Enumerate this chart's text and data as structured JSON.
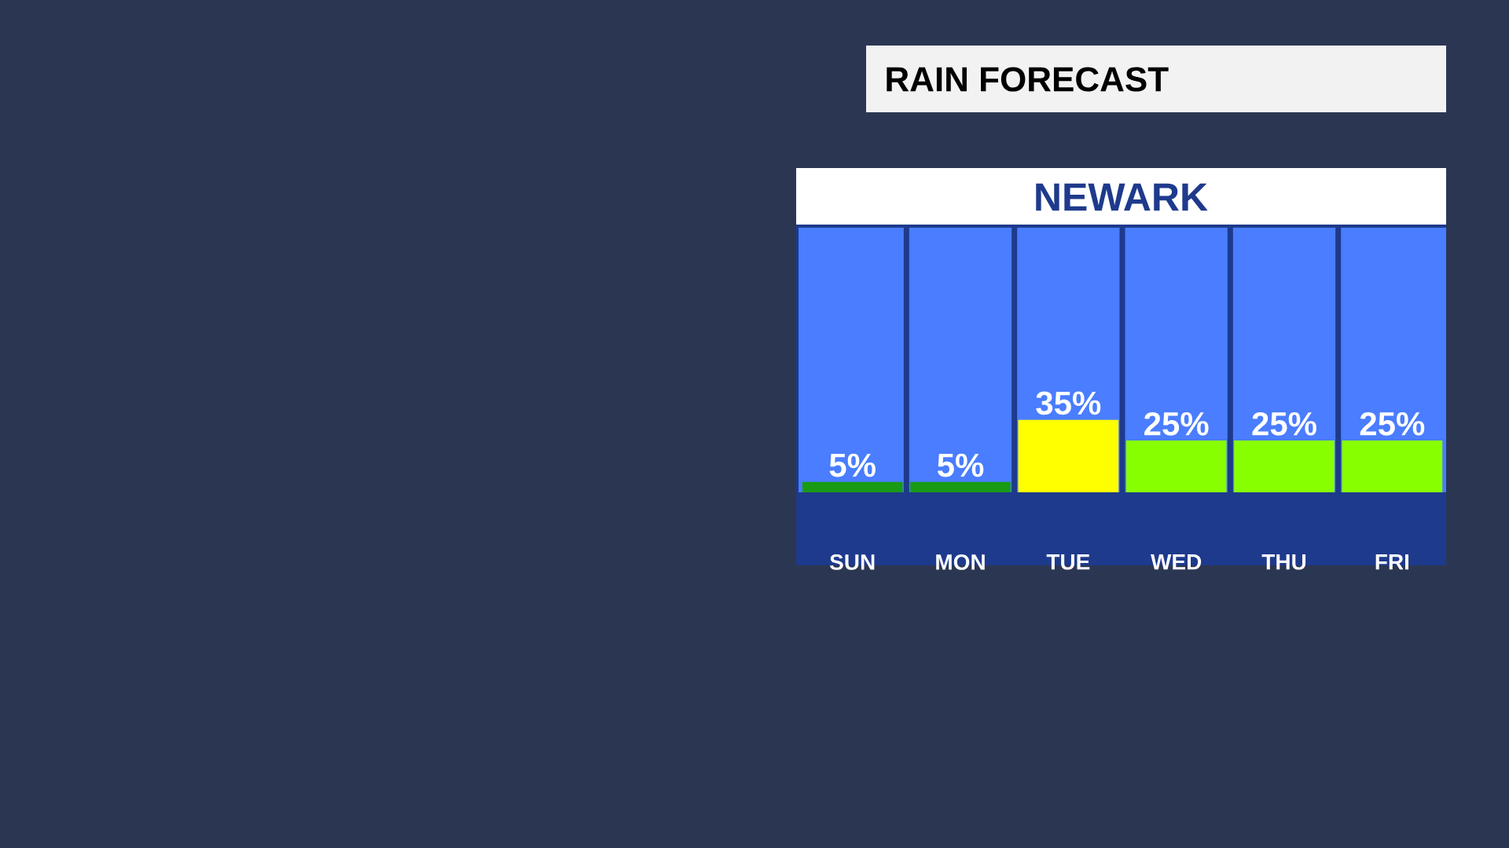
{
  "chart_data": {
    "type": "bar",
    "title": "RAIN FORECAST",
    "subtitle": "NEWARK",
    "categories": [
      "SUN",
      "MON",
      "TUE",
      "WED",
      "THU",
      "FRI"
    ],
    "values": [
      5,
      5,
      35,
      25,
      25,
      25
    ],
    "colors": [
      "#1a9a14",
      "#1a9a14",
      "#ffff00",
      "#88ff00",
      "#88ff00",
      "#88ff00"
    ],
    "value_labels": [
      "5%",
      "5%",
      "35%",
      "25%",
      "25%",
      "25%"
    ]
  }
}
